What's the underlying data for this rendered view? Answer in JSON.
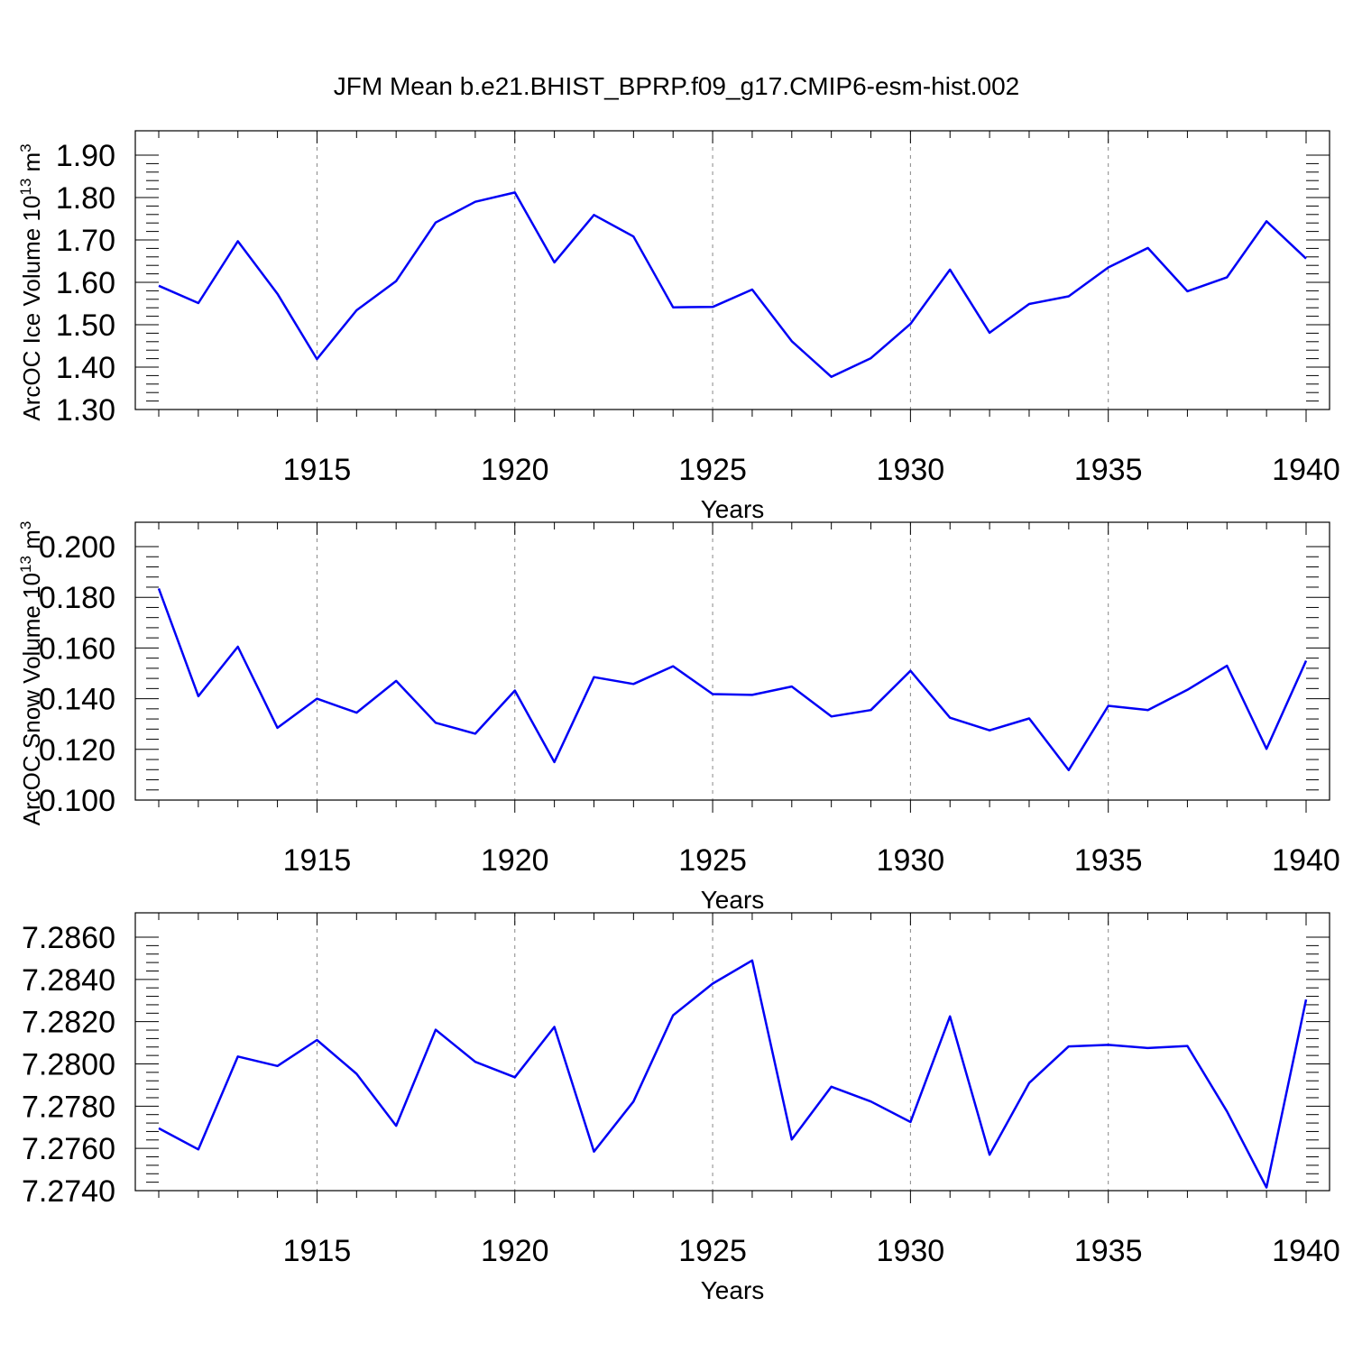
{
  "title": "JFM Mean b.e21.BHIST_BPRP.f09_g17.CMIP6-esm-hist.002",
  "colors": {
    "line": "#0000f5",
    "grid": "#888888",
    "axis": "#000000"
  },
  "chart_data": [
    {
      "type": "line",
      "xlabel": "Years",
      "ylabel": "ArcOC Ice Volume 10^13 m^3",
      "ylabel_parts": {
        "base": "ArcOC Ice Volume 10",
        "exp": "13",
        "unit": " m",
        "unit_exp": "3"
      },
      "xlim": [
        1911,
        1940
      ],
      "ylim": [
        1.3,
        1.9
      ],
      "x_ticks": [
        1915,
        1920,
        1925,
        1930,
        1935,
        1940
      ],
      "x_tick_labels": [
        "1915",
        "1920",
        "1925",
        "1930",
        "1935",
        "1940"
      ],
      "y_ticks": [
        1.3,
        1.4,
        1.5,
        1.6,
        1.7,
        1.8,
        1.9
      ],
      "y_tick_labels": [
        "1.30",
        "1.40",
        "1.50",
        "1.60",
        "1.70",
        "1.80",
        "1.90"
      ],
      "grid": "vertical dashed at major x ticks",
      "x": [
        1911,
        1912,
        1913,
        1914,
        1915,
        1916,
        1917,
        1918,
        1919,
        1920,
        1921,
        1922,
        1923,
        1924,
        1925,
        1926,
        1927,
        1928,
        1929,
        1930,
        1931,
        1932,
        1933,
        1934,
        1935,
        1936,
        1937,
        1938,
        1939,
        1940
      ],
      "values": [
        1.592,
        1.551,
        1.697,
        1.573,
        1.419,
        1.534,
        1.603,
        1.741,
        1.79,
        1.812,
        1.647,
        1.759,
        1.708,
        1.541,
        1.542,
        1.583,
        1.461,
        1.377,
        1.421,
        1.502,
        1.63,
        1.481,
        1.549,
        1.567,
        1.635,
        1.681,
        1.579,
        1.612,
        1.744,
        1.656
      ]
    },
    {
      "type": "line",
      "xlabel": "Years",
      "ylabel": "ArcOC Snow Volume 10^13 m^3",
      "ylabel_parts": {
        "base": "ArcOC Snow Volume 10",
        "exp": "13",
        "unit": " m",
        "unit_exp": "3"
      },
      "xlim": [
        1911,
        1940
      ],
      "ylim": [
        0.1,
        0.2
      ],
      "x_ticks": [
        1915,
        1920,
        1925,
        1930,
        1935,
        1940
      ],
      "x_tick_labels": [
        "1915",
        "1920",
        "1925",
        "1930",
        "1935",
        "1940"
      ],
      "y_ticks": [
        0.1,
        0.12,
        0.14,
        0.16,
        0.18,
        0.2
      ],
      "y_tick_labels": [
        "0.100",
        "0.120",
        "0.140",
        "0.160",
        "0.180",
        "0.200"
      ],
      "grid": "vertical dashed at major x ticks",
      "x": [
        1911,
        1912,
        1913,
        1914,
        1915,
        1916,
        1917,
        1918,
        1919,
        1920,
        1921,
        1922,
        1923,
        1924,
        1925,
        1926,
        1927,
        1928,
        1929,
        1930,
        1931,
        1932,
        1933,
        1934,
        1935,
        1936,
        1937,
        1938,
        1939,
        1940
      ],
      "values": [
        0.1835,
        0.141,
        0.1605,
        0.1285,
        0.14,
        0.1345,
        0.147,
        0.1305,
        0.1262,
        0.1432,
        0.115,
        0.1485,
        0.1458,
        0.1528,
        0.1418,
        0.1415,
        0.1448,
        0.133,
        0.1355,
        0.151,
        0.1325,
        0.1275,
        0.1322,
        0.1118,
        0.1372,
        0.1355,
        0.1435,
        0.153,
        0.1202,
        0.155
      ]
    },
    {
      "type": "line",
      "xlabel": "Years",
      "ylim": [
        7.274,
        7.286
      ],
      "xlim": [
        1911,
        1940
      ],
      "x_ticks": [
        1915,
        1920,
        1925,
        1930,
        1935,
        1940
      ],
      "x_tick_labels": [
        "1915",
        "1920",
        "1925",
        "1930",
        "1935",
        "1940"
      ],
      "y_ticks": [
        7.274,
        7.276,
        7.278,
        7.28,
        7.282,
        7.284,
        7.286
      ],
      "y_tick_labels": [
        "7.2740",
        "7.2760",
        "7.2780",
        "7.2800",
        "7.2820",
        "7.2840",
        "7.2860"
      ],
      "grid": "vertical dashed at major x ticks",
      "x": [
        1911,
        1912,
        1913,
        1914,
        1915,
        1916,
        1917,
        1918,
        1919,
        1920,
        1921,
        1922,
        1923,
        1924,
        1925,
        1926,
        1927,
        1928,
        1929,
        1930,
        1931,
        1932,
        1933,
        1934,
        1935,
        1936,
        1937,
        1938,
        1939,
        1940
      ],
      "values": [
        7.27695,
        7.27595,
        7.28035,
        7.2799,
        7.28113,
        7.27953,
        7.27707,
        7.28162,
        7.2801,
        7.27937,
        7.28175,
        7.27585,
        7.27822,
        7.2823,
        7.2838,
        7.2849,
        7.27642,
        7.27892,
        7.27822,
        7.27725,
        7.28225,
        7.2757,
        7.2791,
        7.28083,
        7.2809,
        7.28075,
        7.28085,
        7.27775,
        7.27415,
        7.28305
      ]
    }
  ]
}
